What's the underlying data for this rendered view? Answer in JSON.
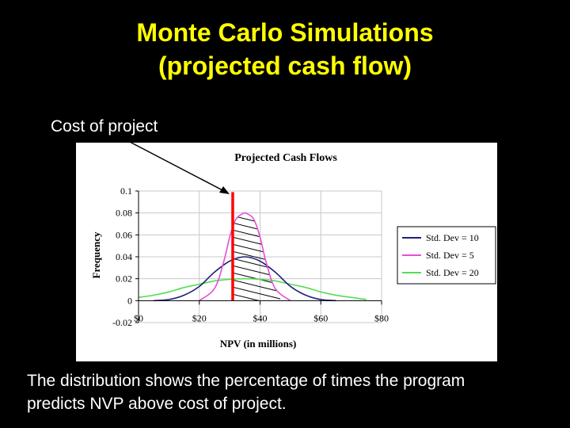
{
  "slide": {
    "title_line1": "Monte Carlo Simulations",
    "title_line2": "(projected cash flow)",
    "callout_label": "Cost of project",
    "caption_line1": "The distribution shows the percentage of times the program",
    "caption_line2": "predicts NVP above cost of project."
  },
  "colors": {
    "title": "#ffff00",
    "cost_line": "#ff0000",
    "std10": "#1f1f7a",
    "std5": "#e64fd6",
    "std20": "#55dd55"
  },
  "chart_data": {
    "type": "line",
    "title": "Projected Cash Flows",
    "xlabel": "NPV (in millions)",
    "ylabel": "Frequency",
    "xlim": [
      0,
      80
    ],
    "ylim": [
      -0.02,
      0.1
    ],
    "xticks": [
      0,
      20,
      40,
      60,
      80
    ],
    "xtick_labels": [
      "$0",
      "$20",
      "$40",
      "$60",
      "$80"
    ],
    "yticks": [
      0.1,
      0.08,
      0.06,
      0.04,
      0.02,
      0,
      -0.02
    ],
    "ytick_labels": [
      "0.1",
      "0.08",
      "0.06",
      "0.04",
      "0.02",
      "0",
      "-0.02"
    ],
    "legend_position": "right",
    "cost_line_x": 31,
    "shaded_region": "area under Std. Dev = 5 curve right of cost of project",
    "series": [
      {
        "name": "Std. Dev = 10",
        "x": [
          5,
          10,
          15,
          20,
          25,
          30,
          35,
          40,
          45,
          50,
          55,
          60,
          65
        ],
        "values": [
          0.0,
          0.001,
          0.005,
          0.013,
          0.026,
          0.036,
          0.04,
          0.036,
          0.026,
          0.013,
          0.005,
          0.001,
          0.0
        ]
      },
      {
        "name": "Std. Dev = 5",
        "x": [
          20,
          25,
          28,
          30,
          32,
          34,
          35,
          36,
          38,
          40,
          42,
          45,
          50
        ],
        "values": [
          0.0,
          0.011,
          0.035,
          0.058,
          0.074,
          0.079,
          0.08,
          0.079,
          0.074,
          0.058,
          0.035,
          0.011,
          0.0
        ]
      },
      {
        "name": "Std. Dev = 20",
        "x": [
          0,
          5,
          10,
          15,
          20,
          25,
          30,
          35,
          40,
          45,
          50,
          55,
          60,
          65,
          70,
          75
        ],
        "values": [
          0.003,
          0.005,
          0.008,
          0.012,
          0.015,
          0.018,
          0.0195,
          0.02,
          0.0195,
          0.018,
          0.015,
          0.012,
          0.008,
          0.005,
          0.003,
          0.001
        ]
      }
    ]
  }
}
